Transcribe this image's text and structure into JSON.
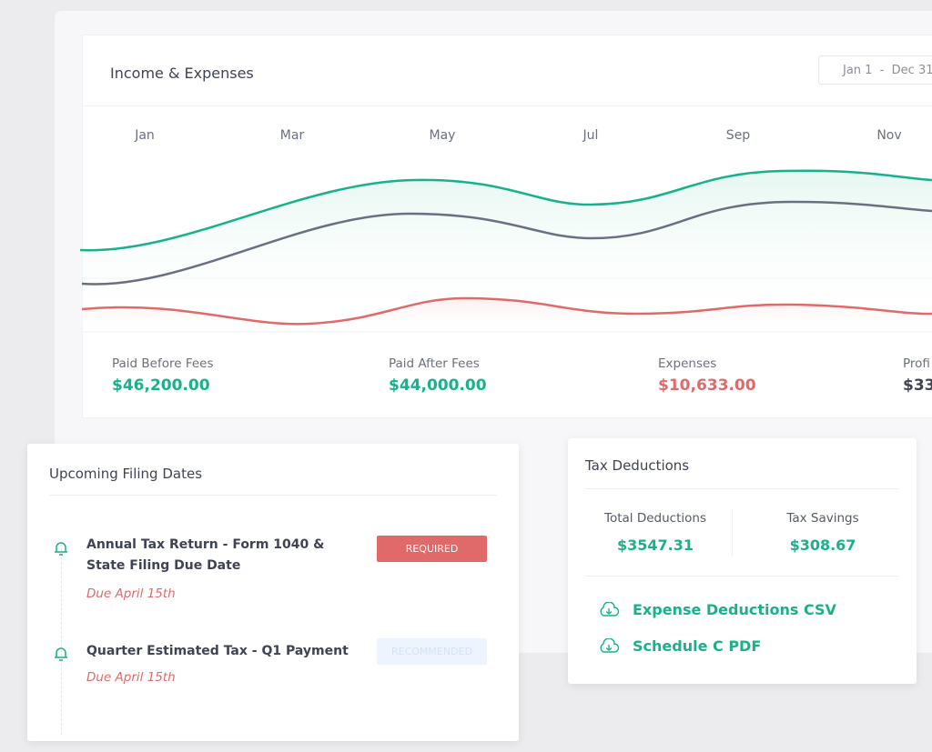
{
  "income_card": {
    "title": "Income & Expenses",
    "date_range": "Jan 1  -  Dec 31",
    "months": [
      "Jan",
      "Mar",
      "May",
      "Jul",
      "Sep",
      "Nov"
    ],
    "stats": [
      {
        "label": "Paid Before Fees",
        "value": "$46,200.00"
      },
      {
        "label": "Paid After Fees",
        "value": "$44,000.00"
      },
      {
        "label": "Expenses",
        "value": "$10,633.00"
      },
      {
        "label": "Profi",
        "value": "$33"
      }
    ]
  },
  "filing_card": {
    "title": "Upcoming Filing Dates",
    "items": [
      {
        "title": "Annual Tax Return - Form 1040 & State Filing Due Date",
        "badge": "REQUIRED",
        "due": "Due April 15th"
      },
      {
        "title": "Quarter Estimated Tax - Q1 Payment",
        "badge": "RECOMMENDED",
        "due": "Due April 15th"
      }
    ]
  },
  "tax_card": {
    "title": "Tax Deductions",
    "stats": [
      {
        "label": "Total Deductions",
        "value": "$3547.31"
      },
      {
        "label": "Tax Savings",
        "value": "$308.67"
      }
    ],
    "links": [
      "Expense Deductions CSV",
      "Schedule C PDF"
    ]
  }
}
